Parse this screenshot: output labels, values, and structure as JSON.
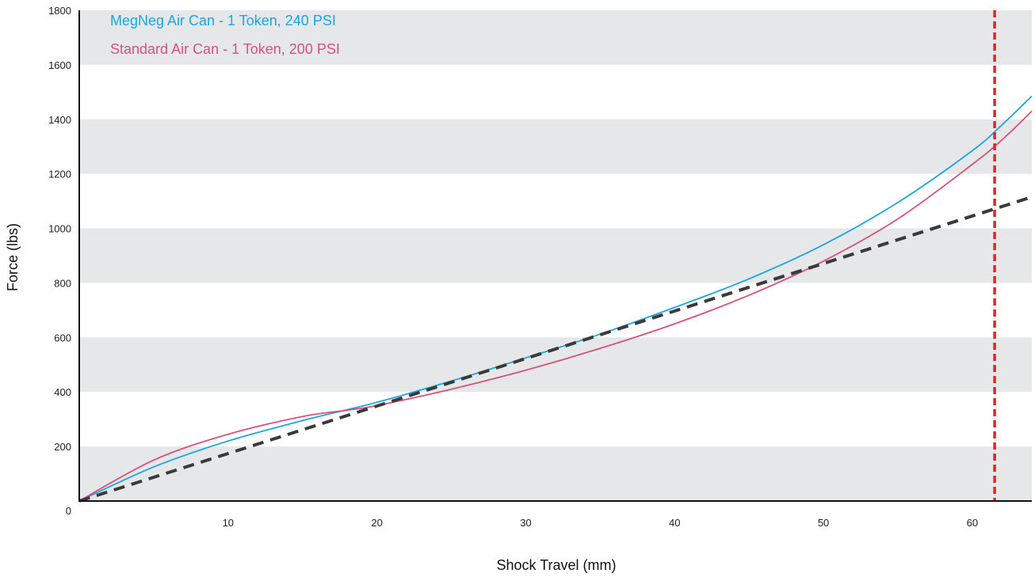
{
  "chart_data": {
    "type": "line",
    "title": "",
    "xlabel": "Shock Travel (mm)",
    "ylabel": "Force (lbs)",
    "xlim": [
      0,
      64
    ],
    "ylim": [
      0,
      1800
    ],
    "x_ticks": [
      10,
      20,
      30,
      40,
      50,
      60
    ],
    "y_ticks": [
      0,
      200,
      400,
      600,
      800,
      1000,
      1200,
      1400,
      1600,
      1800
    ],
    "grid": "alternating horizontal gray bands every 200 lbs",
    "legend_position": "top-left",
    "series": [
      {
        "name": "MegNeg Air Can - 1 Token, 240 PSI",
        "color": "#1aa6e0",
        "style": "solid",
        "x": [
          0,
          5,
          10,
          15,
          18,
          20,
          25,
          30,
          35,
          40,
          45,
          50,
          55,
          60,
          62,
          64
        ],
        "y": [
          0,
          125,
          220,
          295,
          335,
          362,
          440,
          525,
          612,
          710,
          815,
          940,
          1095,
          1285,
          1380,
          1485
        ]
      },
      {
        "name": "Standard Air Can - 1 Token, 200 PSI",
        "color": "#d6527a",
        "style": "solid",
        "x": [
          0,
          5,
          10,
          15,
          18,
          20,
          25,
          30,
          35,
          40,
          45,
          50,
          55,
          60,
          62,
          64
        ],
        "y": [
          0,
          150,
          245,
          310,
          333,
          350,
          410,
          480,
          560,
          650,
          755,
          880,
          1035,
          1235,
          1325,
          1430
        ]
      },
      {
        "name": "",
        "color": "#3a3a3a",
        "style": "dashed",
        "x": [
          0,
          64
        ],
        "y": [
          0,
          1115
        ]
      }
    ],
    "vertical_marker": {
      "x": 61.5,
      "color": "#e0242a",
      "style": "dashed"
    }
  }
}
